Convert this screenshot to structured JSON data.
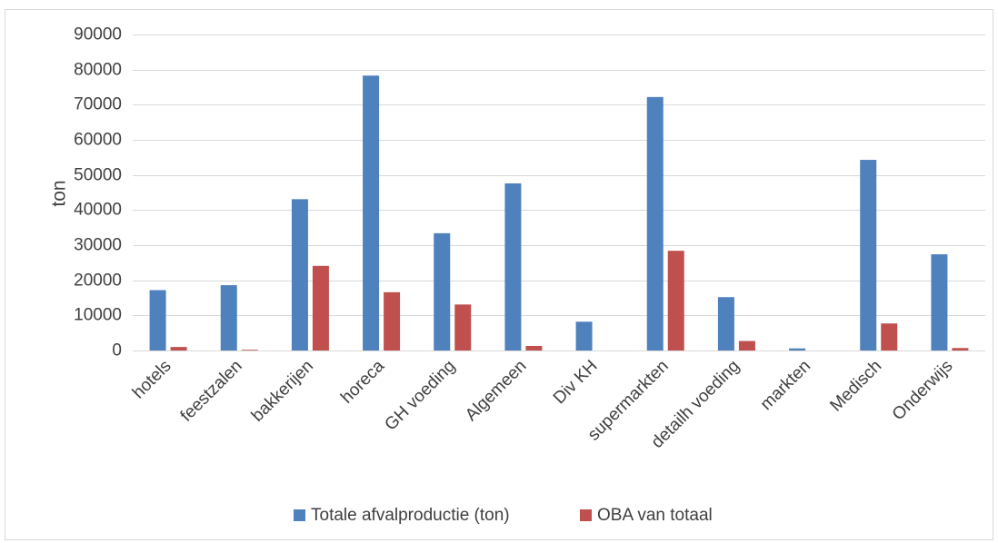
{
  "chart_data": {
    "type": "bar",
    "title": "",
    "xlabel": "",
    "ylabel": "ton",
    "ylim": [
      0,
      90000
    ],
    "yticks": [
      0,
      10000,
      20000,
      30000,
      40000,
      50000,
      60000,
      70000,
      80000,
      90000
    ],
    "grid": true,
    "legend_position": "bottom",
    "categories": [
      "hotels",
      "feestzalen",
      "bakkerijen",
      "horeca",
      "GH voeding",
      "Algemeen",
      "Div KH",
      "supermarkten",
      "detailh voeding",
      "markten",
      "Medisch",
      "Onderwijs"
    ],
    "series": [
      {
        "name": "Totale afvalproductie (ton)",
        "color": "#4f81bd",
        "values": [
          17200,
          18600,
          43100,
          78300,
          33400,
          47600,
          8200,
          72200,
          15200,
          600,
          54300,
          27400
        ]
      },
      {
        "name": "OBA van totaal",
        "color": "#c0504d",
        "values": [
          1000,
          200,
          24100,
          16600,
          13100,
          1300,
          0,
          28400,
          2700,
          0,
          7700,
          700
        ]
      }
    ]
  }
}
